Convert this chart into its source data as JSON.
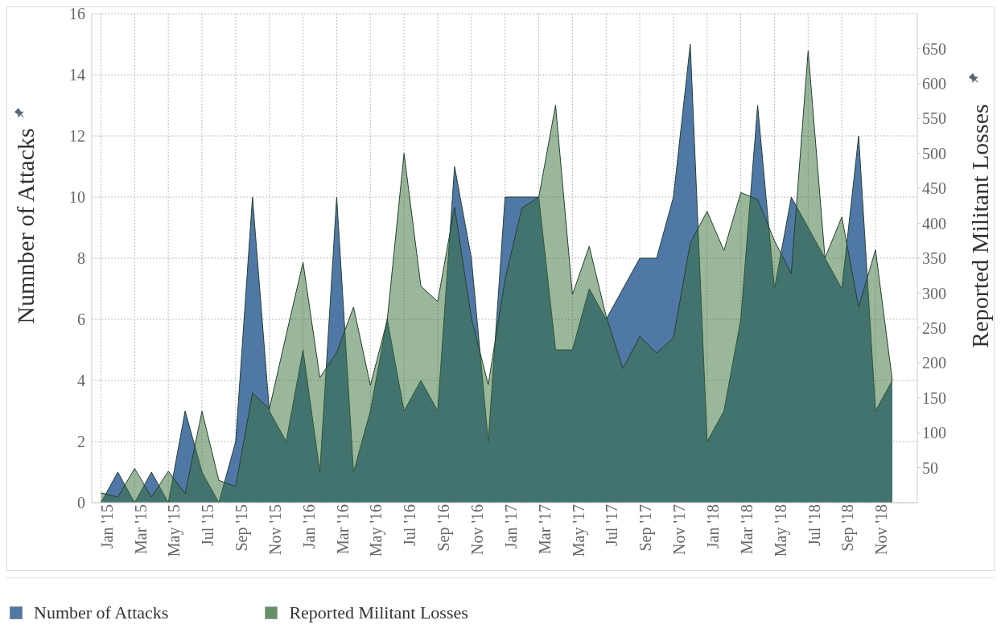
{
  "chart_data": {
    "type": "area",
    "x": [
      "2015-01",
      "2015-02",
      "2015-03",
      "2015-04",
      "2015-05",
      "2015-06",
      "2015-07",
      "2015-08",
      "2015-09",
      "2015-10",
      "2015-11",
      "2015-12",
      "2016-01",
      "2016-02",
      "2016-03",
      "2016-04",
      "2016-05",
      "2016-06",
      "2016-07",
      "2016-08",
      "2016-09",
      "2016-10",
      "2016-11",
      "2016-12",
      "2017-01",
      "2017-02",
      "2017-03",
      "2017-04",
      "2017-05",
      "2017-06",
      "2017-07",
      "2017-08",
      "2017-09",
      "2017-10",
      "2017-11",
      "2017-12",
      "2018-01",
      "2018-02",
      "2018-03",
      "2018-04",
      "2018-05",
      "2018-06",
      "2018-07",
      "2018-08",
      "2018-09",
      "2018-10",
      "2018-11",
      "2018-12"
    ],
    "series": [
      {
        "name": "Number of Attacks",
        "color": "#4f78a6",
        "values": [
          0,
          1,
          0,
          1,
          0,
          3,
          1,
          0,
          2,
          10,
          3,
          2,
          5,
          1,
          10,
          1,
          3,
          6,
          3,
          4,
          3,
          11,
          8,
          2,
          10,
          10,
          10,
          5,
          5,
          7,
          6,
          7,
          8,
          8,
          10,
          15,
          2,
          3,
          6,
          13,
          7,
          10,
          9,
          8,
          7,
          12,
          3,
          4
        ]
      },
      {
        "name": "Reported Militant Losses",
        "color": "#356d37",
        "axis": "y2",
        "values": [
          14,
          8,
          49,
          8,
          45,
          13,
          131,
          32,
          23,
          157,
          134,
          240,
          344,
          179,
          215,
          280,
          168,
          261,
          500,
          310,
          288,
          423,
          264,
          169,
          320,
          422,
          437,
          569,
          298,
          367,
          267,
          192,
          238,
          214,
          236,
          372,
          417,
          361,
          444,
          434,
          375,
          328,
          647,
          350,
          409,
          280,
          362,
          175
        ]
      }
    ],
    "xlim": [
      "2014-12-15",
      "2019-01-16"
    ],
    "xticks": [
      {
        "value": "2015-01",
        "label": "Jan '15"
      },
      {
        "value": "2015-03",
        "label": "Mar '15"
      },
      {
        "value": "2015-05",
        "label": "May '15"
      },
      {
        "value": "2015-07",
        "label": "Jul '15"
      },
      {
        "value": "2015-09",
        "label": "Sep '15"
      },
      {
        "value": "2015-11",
        "label": "Nov '15"
      },
      {
        "value": "2016-01",
        "label": "Jan '16"
      },
      {
        "value": "2016-03",
        "label": "Mar '16"
      },
      {
        "value": "2016-05",
        "label": "May '16"
      },
      {
        "value": "2016-07",
        "label": "Jul '16"
      },
      {
        "value": "2016-09",
        "label": "Sep '16"
      },
      {
        "value": "2016-11",
        "label": "Nov '16"
      },
      {
        "value": "2017-01",
        "label": "Jan '17"
      },
      {
        "value": "2017-03",
        "label": "Mar '17"
      },
      {
        "value": "2017-05",
        "label": "May '17"
      },
      {
        "value": "2017-07",
        "label": "Jul '17"
      },
      {
        "value": "2017-09",
        "label": "Sep '17"
      },
      {
        "value": "2017-11",
        "label": "Nov '17"
      },
      {
        "value": "2018-01",
        "label": "Jan '18"
      },
      {
        "value": "2018-03",
        "label": "Mar '18"
      },
      {
        "value": "2018-05",
        "label": "May '18"
      },
      {
        "value": "2018-07",
        "label": "Jul '18"
      },
      {
        "value": "2018-09",
        "label": "Sep '18"
      },
      {
        "value": "2018-11",
        "label": "Nov '18"
      }
    ],
    "ylim": [
      0,
      16
    ],
    "yticks": [
      0,
      2,
      4,
      6,
      8,
      10,
      12,
      14,
      16
    ],
    "y2lim": [
      0,
      700
    ],
    "y2ticks": [
      50,
      100,
      150,
      200,
      250,
      300,
      350,
      400,
      450,
      500,
      550,
      600,
      650
    ],
    "ylabel": "Numnber of Attacks",
    "y2label": "Reported Militant Losses",
    "grid": true,
    "legend": "bottom left"
  }
}
